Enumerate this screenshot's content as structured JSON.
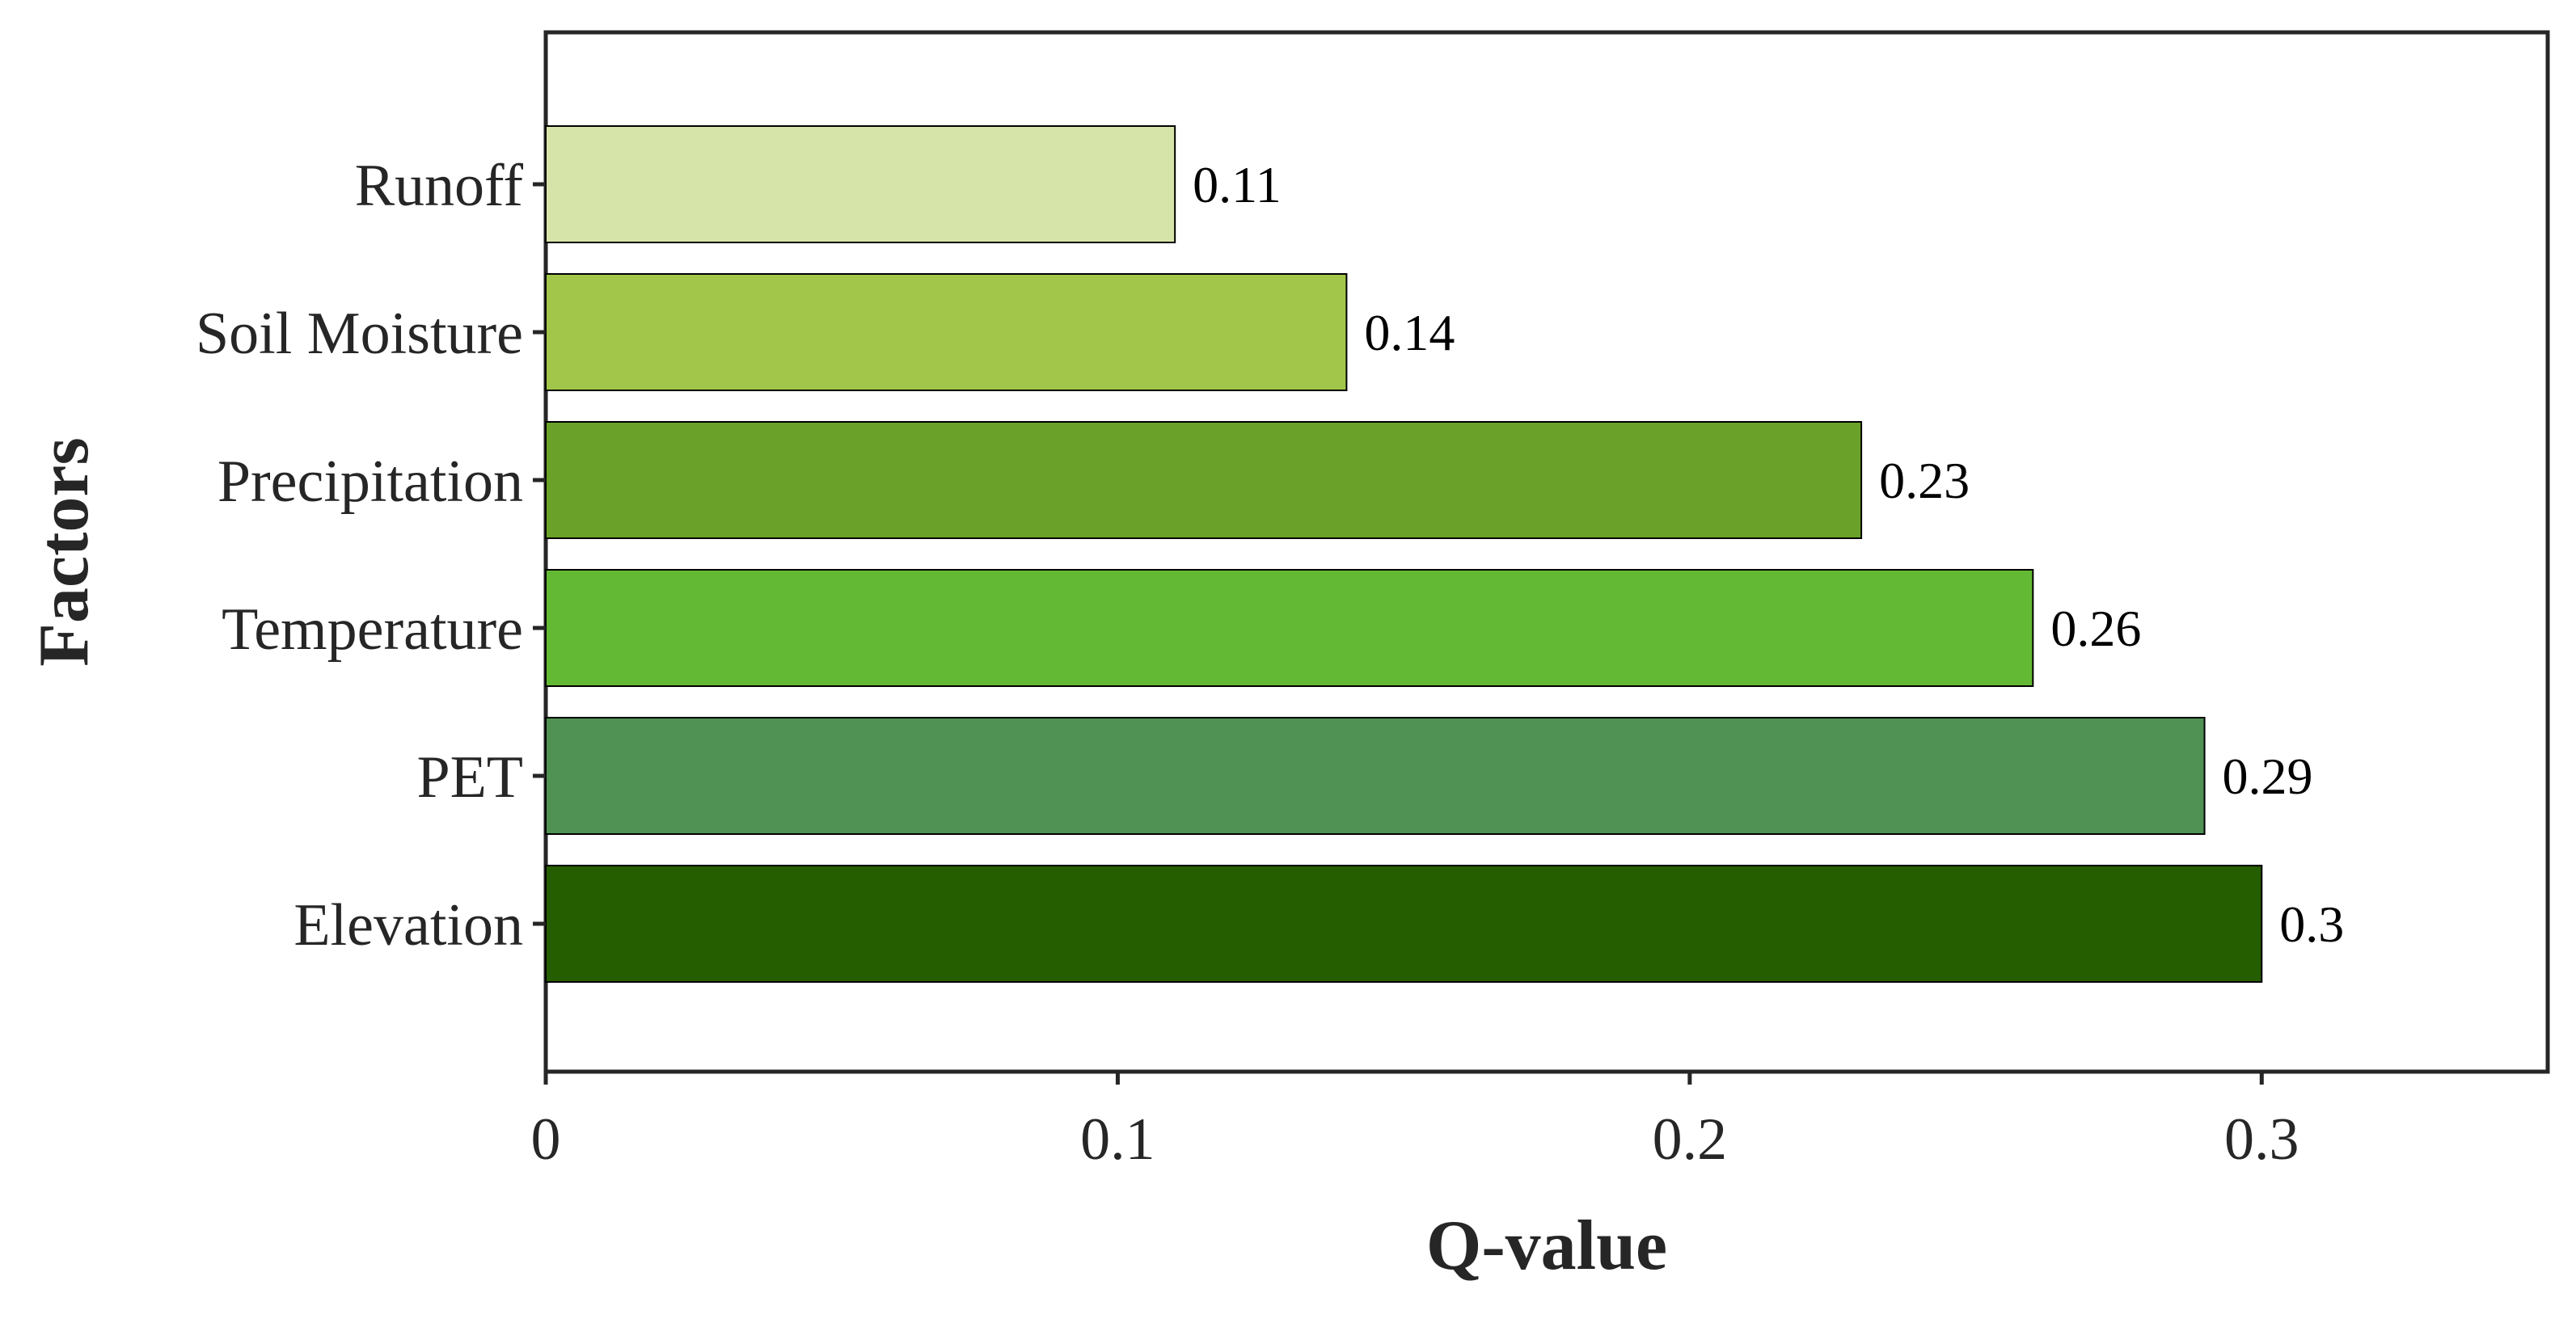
{
  "chart_data": {
    "type": "bar",
    "orientation": "horizontal",
    "categories": [
      "Runoff",
      "Soil Moisture",
      "Precipitation",
      "Temperature",
      "PET",
      "Elevation"
    ],
    "values": [
      0.11,
      0.14,
      0.23,
      0.26,
      0.29,
      0.3
    ],
    "data_labels": [
      "0.11",
      "0.14",
      "0.23",
      "0.26",
      "0.29",
      "0.3"
    ],
    "colors": [
      "#d6e4a9",
      "#a2c64a",
      "#6aa128",
      "#64b934",
      "#4f9254",
      "#255e00"
    ],
    "title": "",
    "xlabel": "Q-value",
    "ylabel": "Factors",
    "xlim": [
      0,
      0.35
    ],
    "xticks": [
      0,
      0.1,
      0.2,
      0.3
    ],
    "xtick_labels": [
      "0",
      "0.1",
      "0.2",
      "0.3"
    ],
    "grid": false,
    "legend": "none"
  }
}
